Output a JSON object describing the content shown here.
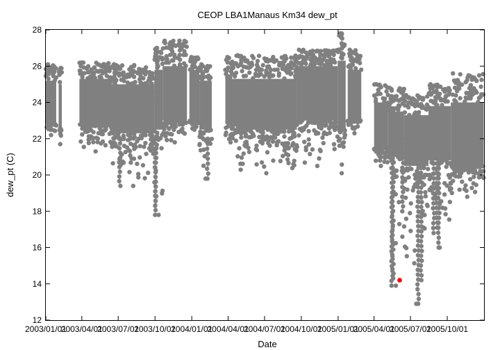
{
  "chart_data": {
    "type": "scatter",
    "title": "CEOP LBA1Manaus Km34  dew_pt",
    "xlabel": "Date",
    "ylabel": "dew_pt (C)",
    "ylim": [
      12,
      28
    ],
    "yticks": [
      12,
      14,
      16,
      18,
      20,
      22,
      24,
      26,
      28
    ],
    "xticks": [
      "2003/01/01",
      "2003/04/01",
      "2003/07/01",
      "2003/10/01",
      "2004/01/01",
      "2004/04/01",
      "2004/07/01",
      "2004/10/01",
      "2005/01/01",
      "2005/04/01",
      "2005/07/01",
      "2005/10/01"
    ],
    "grid": false,
    "colors": {
      "series": "#808080",
      "highlight": "#ff0000"
    },
    "data_segments": [
      {
        "start": "2003/01/01",
        "end": "2003/01/27",
        "low": 22.8,
        "high": 25.2,
        "min": 22.2,
        "max": 26.1
      },
      {
        "start": "2003/02/02",
        "end": "2003/02/10",
        "low": 22.6,
        "high": 25.0,
        "min": 21.7,
        "max": 25.9
      },
      {
        "start": "2003/03/26",
        "end": "2003/06/15",
        "low": 22.8,
        "high": 25.3,
        "min": 21.3,
        "max": 26.2
      },
      {
        "start": "2003/06/15",
        "end": "2003/09/30",
        "low": 22.3,
        "high": 25.0,
        "min": 19.4,
        "max": 26.1
      },
      {
        "start": "2003/09/30",
        "end": "2003/10/20",
        "low": 22.5,
        "high": 25.8,
        "min": 17.8,
        "max": 27.0
      },
      {
        "start": "2003/10/20",
        "end": "2003/12/20",
        "low": 23.0,
        "high": 26.0,
        "min": 21.8,
        "max": 27.4
      },
      {
        "start": "2003/12/26",
        "end": "2004/01/20",
        "low": 23.0,
        "high": 25.8,
        "min": 22.5,
        "max": 26.5
      },
      {
        "start": "2004/01/20",
        "end": "2004/02/20",
        "low": 22.5,
        "high": 25.2,
        "min": 19.8,
        "max": 26.1
      },
      {
        "start": "2004/03/25",
        "end": "2004/04/20",
        "low": 22.8,
        "high": 25.3,
        "min": 21.8,
        "max": 26.5
      },
      {
        "start": "2004/04/20",
        "end": "2004/09/20",
        "low": 22.5,
        "high": 25.3,
        "min": 20.1,
        "max": 26.6
      },
      {
        "start": "2004/09/20",
        "end": "2004/12/31",
        "low": 23.0,
        "high": 26.0,
        "min": 20.5,
        "max": 26.9
      },
      {
        "start": "2004/12/31",
        "end": "2005/01/20",
        "low": 22.5,
        "high": 26.3,
        "min": 20.1,
        "max": 27.8
      },
      {
        "start": "2005/01/25",
        "end": "2005/02/28",
        "low": 23.0,
        "high": 25.8,
        "min": 22.3,
        "max": 26.9
      },
      {
        "start": "2005/04/01",
        "end": "2005/05/05",
        "low": 21.5,
        "high": 24.0,
        "min": 20.5,
        "max": 25.0
      },
      {
        "start": "2005/05/05",
        "end": "2005/06/15",
        "low": 21.0,
        "high": 23.5,
        "min": 13.9,
        "max": 24.8
      },
      {
        "start": "2005/06/15",
        "end": "2005/08/15",
        "low": 20.5,
        "high": 23.3,
        "min": 12.9,
        "max": 24.4
      },
      {
        "start": "2005/08/15",
        "end": "2005/10/10",
        "low": 20.8,
        "high": 23.8,
        "min": 16.0,
        "max": 25.0
      },
      {
        "start": "2005/10/10",
        "end": "2005/12/31",
        "low": 20.5,
        "high": 24.0,
        "min": 18.8,
        "max": 25.6
      }
    ],
    "spikes": [
      {
        "x": "2003/07/05",
        "y": 19.4
      },
      {
        "x": "2003/10/02",
        "y": 17.8
      },
      {
        "x": "2003/10/03",
        "y": 18.3
      },
      {
        "x": "2004/02/10",
        "y": 19.8
      },
      {
        "x": "2005/05/16",
        "y": 13.9
      },
      {
        "x": "2005/05/18",
        "y": 14.3
      },
      {
        "x": "2005/06/12",
        "y": 18.0
      },
      {
        "x": "2005/07/20",
        "y": 12.9
      },
      {
        "x": "2005/07/28",
        "y": 14.2
      },
      {
        "x": "2005/08/28",
        "y": 16.8
      },
      {
        "x": "2005/09/10",
        "y": 16.0
      },
      {
        "x": "2005/09/05",
        "y": 17.1
      },
      {
        "x": "2005/01/10",
        "y": 27.8
      },
      {
        "x": "2003/12/01",
        "y": 27.4
      },
      {
        "x": "2003/10/05",
        "y": 27.0
      }
    ],
    "highlight_point": {
      "x": "2005/06/04",
      "y": 14.2
    }
  }
}
